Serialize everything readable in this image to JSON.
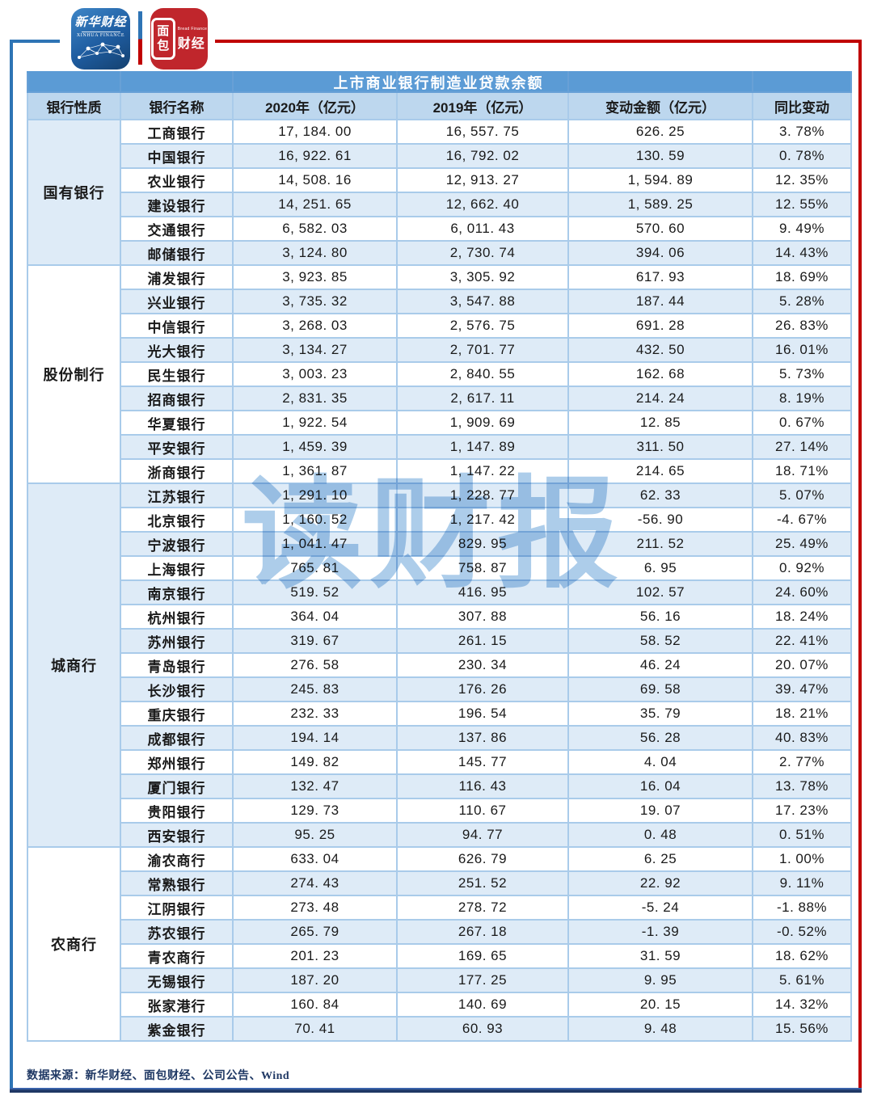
{
  "logos": {
    "xinhua": {
      "cn": "新华财经",
      "en": "XINHUA FINANCE"
    },
    "bread": {
      "box_top": "面",
      "box_bottom": "包",
      "cn": "财经",
      "en": "Bread Finance"
    }
  },
  "chart_data": {
    "type": "table",
    "title": "上市商业银行制造业贷款余额",
    "columns": [
      "银行性质",
      "银行名称",
      "2020年（亿元）",
      "2019年（亿元）",
      "变动金额（亿元）",
      "同比变动"
    ],
    "groups": [
      {
        "category": "国有银行",
        "rows": [
          [
            "工商银行",
            "17, 184. 00",
            "16, 557. 75",
            "626. 25",
            "3. 78%"
          ],
          [
            "中国银行",
            "16, 922. 61",
            "16, 792. 02",
            "130. 59",
            "0. 78%"
          ],
          [
            "农业银行",
            "14, 508. 16",
            "12, 913. 27",
            "1, 594. 89",
            "12. 35%"
          ],
          [
            "建设银行",
            "14, 251. 65",
            "12, 662. 40",
            "1, 589. 25",
            "12. 55%"
          ],
          [
            "交通银行",
            "6, 582. 03",
            "6, 011. 43",
            "570. 60",
            "9. 49%"
          ],
          [
            "邮储银行",
            "3, 124. 80",
            "2, 730. 74",
            "394. 06",
            "14. 43%"
          ]
        ]
      },
      {
        "category": "股份制行",
        "rows": [
          [
            "浦发银行",
            "3, 923. 85",
            "3, 305. 92",
            "617. 93",
            "18. 69%"
          ],
          [
            "兴业银行",
            "3, 735. 32",
            "3, 547. 88",
            "187. 44",
            "5. 28%"
          ],
          [
            "中信银行",
            "3, 268. 03",
            "2, 576. 75",
            "691. 28",
            "26. 83%"
          ],
          [
            "光大银行",
            "3, 134. 27",
            "2, 701. 77",
            "432. 50",
            "16. 01%"
          ],
          [
            "民生银行",
            "3, 003. 23",
            "2, 840. 55",
            "162. 68",
            "5. 73%"
          ],
          [
            "招商银行",
            "2, 831. 35",
            "2, 617. 11",
            "214. 24",
            "8. 19%"
          ],
          [
            "华夏银行",
            "1, 922. 54",
            "1, 909. 69",
            "12. 85",
            "0. 67%"
          ],
          [
            "平安银行",
            "1, 459. 39",
            "1, 147. 89",
            "311. 50",
            "27. 14%"
          ],
          [
            "浙商银行",
            "1, 361. 87",
            "1, 147. 22",
            "214. 65",
            "18. 71%"
          ]
        ]
      },
      {
        "category": "城商行",
        "rows": [
          [
            "江苏银行",
            "1, 291. 10",
            "1, 228. 77",
            "62. 33",
            "5. 07%"
          ],
          [
            "北京银行",
            "1, 160. 52",
            "1, 217. 42",
            "-56. 90",
            "-4. 67%"
          ],
          [
            "宁波银行",
            "1, 041. 47",
            "829. 95",
            "211. 52",
            "25. 49%"
          ],
          [
            "上海银行",
            "765. 81",
            "758. 87",
            "6. 95",
            "0. 92%"
          ],
          [
            "南京银行",
            "519. 52",
            "416. 95",
            "102. 57",
            "24. 60%"
          ],
          [
            "杭州银行",
            "364. 04",
            "307. 88",
            "56. 16",
            "18. 24%"
          ],
          [
            "苏州银行",
            "319. 67",
            "261. 15",
            "58. 52",
            "22. 41%"
          ],
          [
            "青岛银行",
            "276. 58",
            "230. 34",
            "46. 24",
            "20. 07%"
          ],
          [
            "长沙银行",
            "245. 83",
            "176. 26",
            "69. 58",
            "39. 47%"
          ],
          [
            "重庆银行",
            "232. 33",
            "196. 54",
            "35. 79",
            "18. 21%"
          ],
          [
            "成都银行",
            "194. 14",
            "137. 86",
            "56. 28",
            "40. 83%"
          ],
          [
            "郑州银行",
            "149. 82",
            "145. 77",
            "4. 04",
            "2. 77%"
          ],
          [
            "厦门银行",
            "132. 47",
            "116. 43",
            "16. 04",
            "13. 78%"
          ],
          [
            "贵阳银行",
            "129. 73",
            "110. 67",
            "19. 07",
            "17. 23%"
          ],
          [
            "西安银行",
            "95. 25",
            "94. 77",
            "0. 48",
            "0. 51%"
          ]
        ]
      },
      {
        "category": "农商行",
        "rows": [
          [
            "渝农商行",
            "633. 04",
            "626. 79",
            "6. 25",
            "1. 00%"
          ],
          [
            "常熟银行",
            "274. 43",
            "251. 52",
            "22. 92",
            "9. 11%"
          ],
          [
            "江阴银行",
            "273. 48",
            "278. 72",
            "-5. 24",
            "-1. 88%"
          ],
          [
            "苏农银行",
            "265. 79",
            "267. 18",
            "-1. 39",
            "-0. 52%"
          ],
          [
            "青农商行",
            "201. 23",
            "169. 65",
            "31. 59",
            "18. 62%"
          ],
          [
            "无锡银行",
            "187. 20",
            "177. 25",
            "9. 95",
            "5. 61%"
          ],
          [
            "张家港行",
            "160. 84",
            "140. 69",
            "20. 15",
            "14. 32%"
          ],
          [
            "紫金银行",
            "70. 41",
            "60. 93",
            "9. 48",
            "15. 56%"
          ]
        ]
      }
    ],
    "watermark": "读财报",
    "source_note": "数据来源：新华财经、面包财经、公司公告、Wind",
    "layout_hints": {
      "grid": "on",
      "legend": "none",
      "row_striping": "alternating white / light blue"
    },
    "colors": {
      "title_bar": "#5B9BD5",
      "header_row": "#BDD7EE",
      "alt_row": "#DEEBF7",
      "grid": "#A9CBEA",
      "frame_left": "#2E74B5",
      "frame_right": "#C00000",
      "frame_bottom": "#1F3864",
      "watermark": "#5B9BD5"
    }
  }
}
